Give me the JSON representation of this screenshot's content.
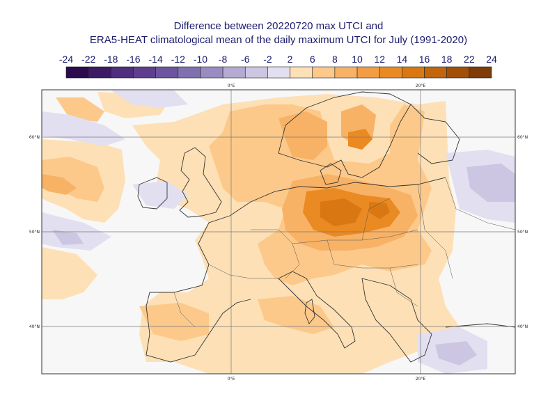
{
  "title": {
    "line1": "Difference between 20220720 max UTCI and",
    "line2": "ERA5-HEAT climatological mean of the daily maximum UTCI for July (1991-2020)"
  },
  "colorbar": {
    "labels": [
      "-24",
      "-22",
      "-18",
      "-16",
      "-14",
      "-12",
      "-10",
      "-8",
      "-6",
      "-2",
      "2",
      "6",
      "8",
      "10",
      "12",
      "14",
      "16",
      "18",
      "22",
      "24"
    ],
    "colors": [
      "#2d0a4e",
      "#3e1a66",
      "#4f2d7f",
      "#5e3f8f",
      "#6d54a0",
      "#8070b0",
      "#9a8cc2",
      "#b4aad3",
      "#ccc6e3",
      "#e2dff0",
      "#f7f7f7",
      "#fde0b6",
      "#fcc98a",
      "#f8b266",
      "#f29d44",
      "#ea8a22",
      "#d97812",
      "#c2650c",
      "#a24f08",
      "#7f3b08"
    ]
  },
  "axes": {
    "top_ticks": [
      "0°E",
      "20°E"
    ],
    "bottom_ticks": [
      "0°E",
      "20°E"
    ],
    "left_ticks": [
      "60°N",
      "50°N",
      "40°N"
    ],
    "right_ticks": [
      "60°N",
      "50°N",
      "40°N"
    ]
  }
}
